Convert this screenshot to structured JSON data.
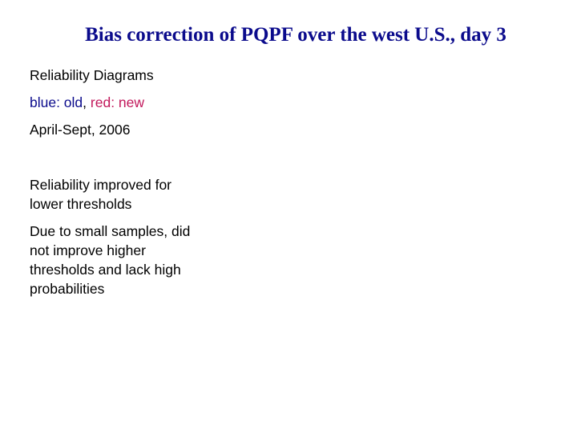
{
  "title": "Bias correction of PQPF over the west U.S., day 3",
  "body": {
    "line1": "Reliability Diagrams",
    "legend": {
      "blue_text": "blue: old",
      "separator": ", ",
      "red_text": "red: new",
      "blue_color": "#0b0b8c",
      "red_color": "#c2185b"
    },
    "period": "April-Sept, 2006",
    "finding1": "Reliability improved for lower thresholds",
    "finding2": "Due to small samples, did not improve higher thresholds and lack high probabilities"
  }
}
